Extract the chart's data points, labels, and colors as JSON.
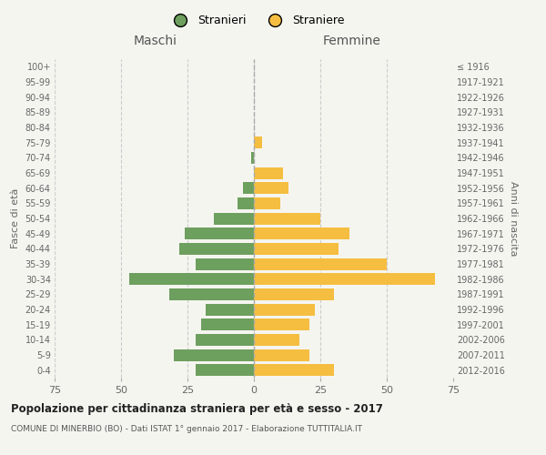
{
  "age_groups": [
    "0-4",
    "5-9",
    "10-14",
    "15-19",
    "20-24",
    "25-29",
    "30-34",
    "35-39",
    "40-44",
    "45-49",
    "50-54",
    "55-59",
    "60-64",
    "65-69",
    "70-74",
    "75-79",
    "80-84",
    "85-89",
    "90-94",
    "95-99",
    "100+"
  ],
  "birth_years": [
    "2012-2016",
    "2007-2011",
    "2002-2006",
    "1997-2001",
    "1992-1996",
    "1987-1991",
    "1982-1986",
    "1977-1981",
    "1972-1976",
    "1967-1971",
    "1962-1966",
    "1957-1961",
    "1952-1956",
    "1947-1951",
    "1942-1946",
    "1937-1941",
    "1932-1936",
    "1927-1931",
    "1922-1926",
    "1917-1921",
    "≤ 1916"
  ],
  "maschi": [
    22,
    30,
    22,
    20,
    18,
    32,
    47,
    22,
    28,
    26,
    15,
    6,
    4,
    0,
    1,
    0,
    0,
    0,
    0,
    0,
    0
  ],
  "femmine": [
    30,
    21,
    17,
    21,
    23,
    30,
    68,
    50,
    32,
    36,
    25,
    10,
    13,
    11,
    0,
    3,
    0,
    0,
    0,
    0,
    0
  ],
  "male_color": "#6d9f5e",
  "female_color": "#f5be41",
  "title": "Popolazione per cittadinanza straniera per età e sesso - 2017",
  "subtitle": "COMUNE DI MINERBIO (BO) - Dati ISTAT 1° gennaio 2017 - Elaborazione TUTTITALIA.IT",
  "ylabel_left": "Fasce di età",
  "ylabel_right": "Anni di nascita",
  "xlabel_left": "Maschi",
  "xlabel_right": "Femmine",
  "legend_male": "Stranieri",
  "legend_female": "Straniere",
  "xlim": 75,
  "background_color": "#f5f5f0",
  "grid_color": "#cccccc"
}
